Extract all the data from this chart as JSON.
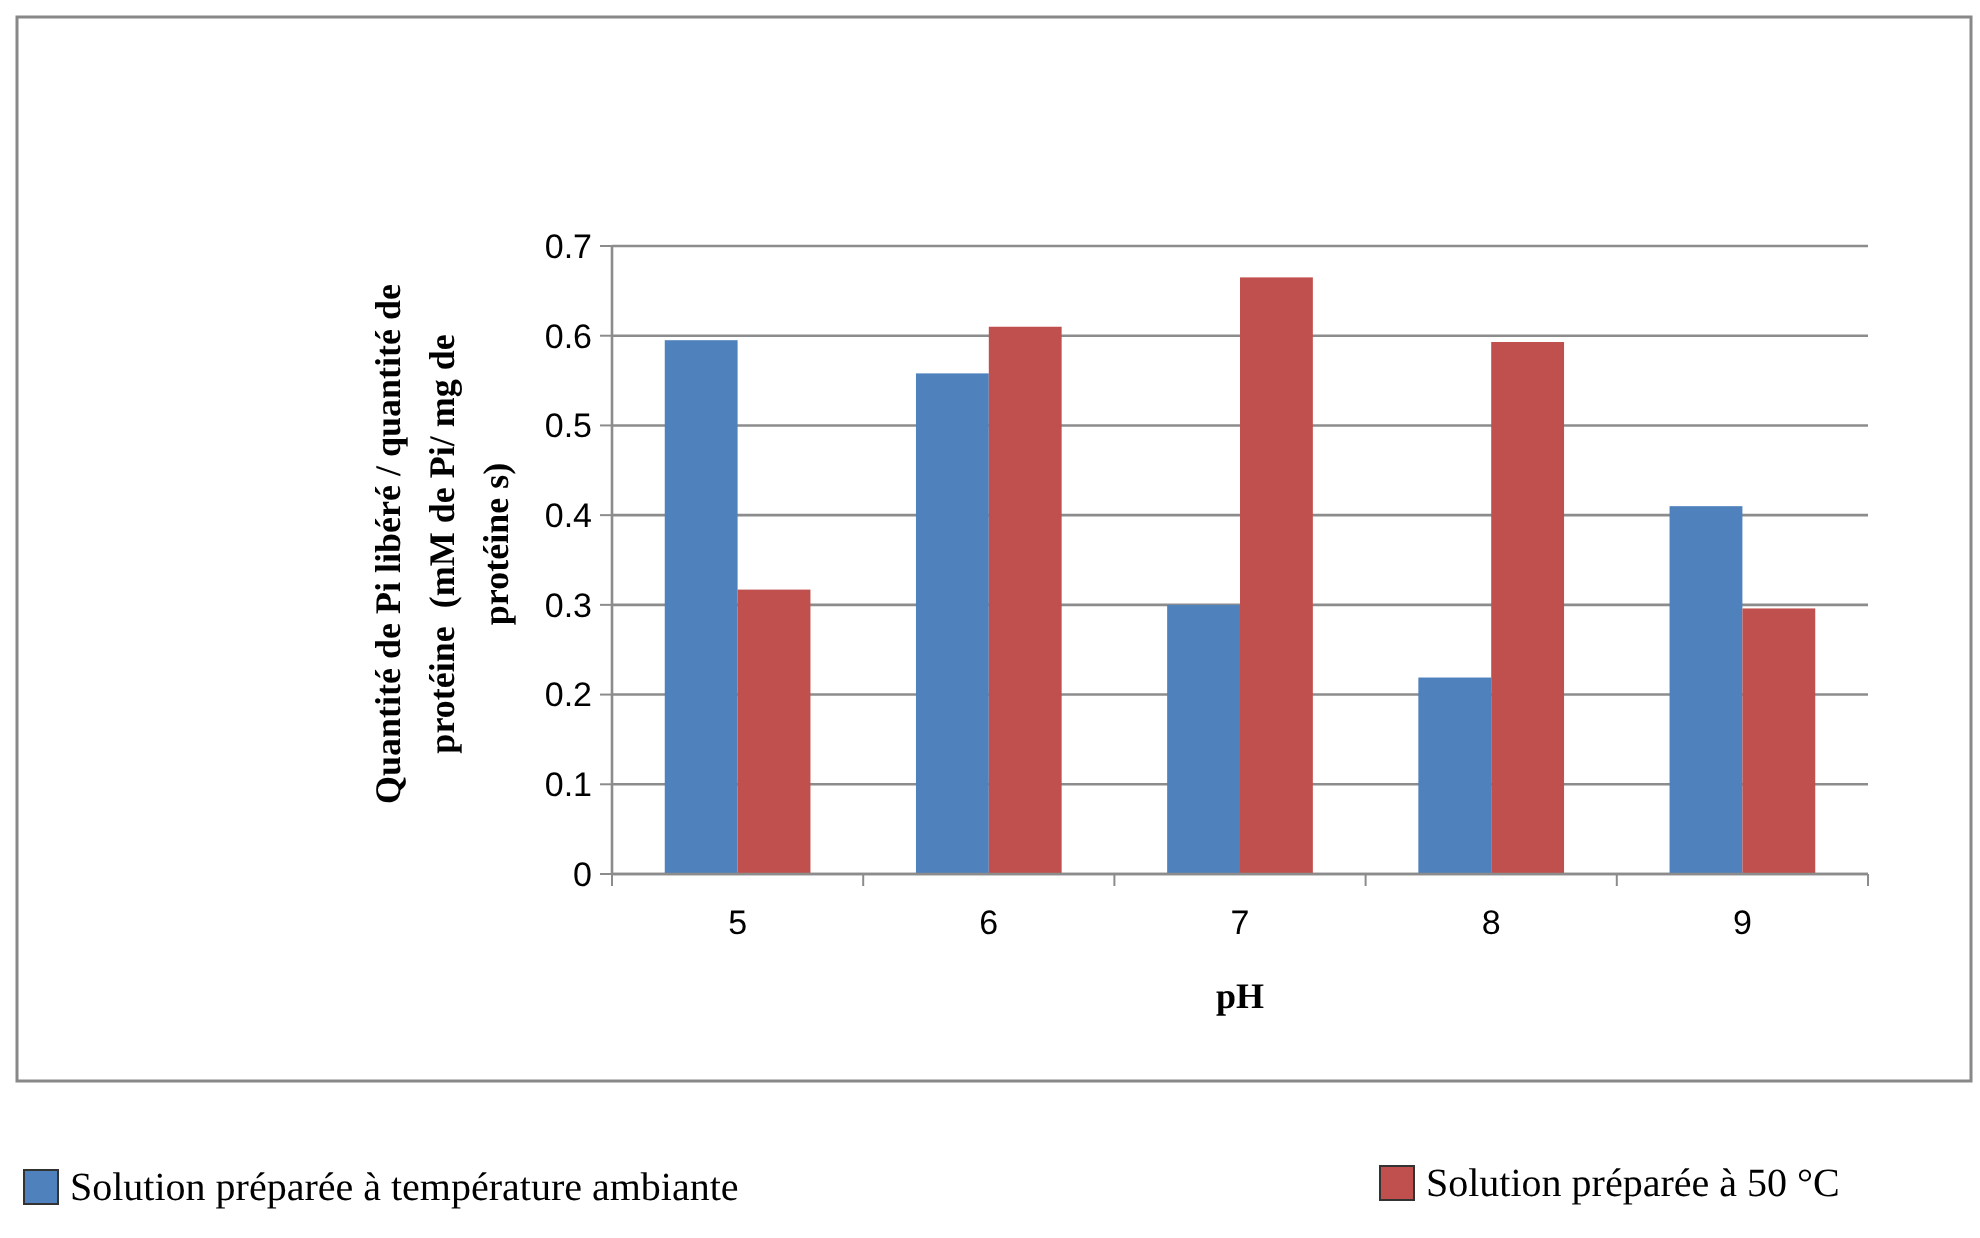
{
  "chart_data": {
    "type": "bar",
    "xlabel": "pH",
    "ylabel": "Quantité de Pi libéré / quantité de\nprotéine  (mM de Pi/ mg de\nprotéine s)",
    "categories": [
      "5",
      "6",
      "7",
      "8",
      "9"
    ],
    "series": [
      {
        "name": "Solution préparée à température ambiante",
        "color": "#4f81bd",
        "values": [
          0.595,
          0.558,
          0.3,
          0.219,
          0.41
        ]
      },
      {
        "name": "Solution préparée à 50 °C",
        "color": "#c0504d",
        "values": [
          0.317,
          0.61,
          0.665,
          0.593,
          0.296
        ]
      }
    ],
    "ylim": [
      0,
      0.7
    ],
    "yticks": [
      0,
      0.1,
      0.2,
      0.3,
      0.4,
      0.5,
      0.6,
      0.7
    ],
    "grid": "y",
    "legend": "bottom"
  }
}
